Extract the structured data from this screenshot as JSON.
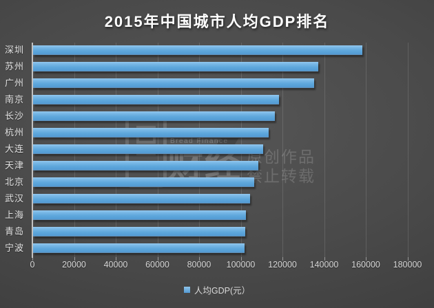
{
  "title": "2015年中国城市人均GDP排名",
  "legend": {
    "label": "人均GDP(元）",
    "swatch_color": "#5ba3dc"
  },
  "watermark": {
    "brand_en": "Bread Finance",
    "brand_cn": "财经",
    "notice_line1": "原创作品",
    "notice_line2": "禁止转载"
  },
  "colors": {
    "bar": "#5ea7dc",
    "background": "#484848",
    "text": "#e3e3e3"
  },
  "chart_data": {
    "type": "bar",
    "orientation": "horizontal",
    "title": "2015年中国城市人均GDP排名",
    "series_name": "人均GDP(元）",
    "categories": [
      "深圳",
      "苏州",
      "广州",
      "南京",
      "长沙",
      "杭州",
      "大连",
      "天津",
      "北京",
      "武汉",
      "上海",
      "青岛",
      "宁波"
    ],
    "values": [
      158000,
      137000,
      135000,
      118000,
      116000,
      113000,
      110500,
      108000,
      106000,
      104000,
      102000,
      101800,
      101600
    ],
    "xlabel": "",
    "ylabel": "",
    "xlim": [
      0,
      180000
    ],
    "x_ticks": [
      0,
      20000,
      40000,
      60000,
      80000,
      100000,
      120000,
      140000,
      160000,
      180000
    ],
    "grid": true,
    "legend_position": "bottom"
  }
}
